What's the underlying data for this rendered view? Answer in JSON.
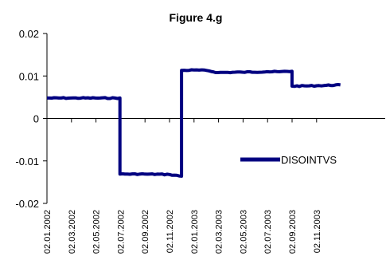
{
  "chart_data": {
    "type": "line",
    "title": "Figure 4.g",
    "xlabel": "",
    "ylabel": "",
    "ylim": [
      -0.02,
      0.02
    ],
    "y_ticks": [
      "0.02",
      "0.01",
      "0",
      "-0.01",
      "-0.02"
    ],
    "y_tick_values": [
      0.02,
      0.01,
      0,
      -0.01,
      -0.02
    ],
    "x_tick_labels": [
      "02.01.2002",
      "02.03.2002",
      "02.05.2002",
      "02.07.2002",
      "02.09.2002",
      "02.11.2002",
      "02.01.2003",
      "02.03.2003",
      "02.05.2003",
      "02.07.2003",
      "02.09.2003",
      "02.11.2003"
    ],
    "grid": false,
    "legend_position": "right",
    "series": [
      {
        "name": "DISOINTVS",
        "color": "#000080",
        "x": [
          "02.01.2002",
          "02.03.2002",
          "02.05.2002",
          "02.07.2002",
          "02.07.2002",
          "02.09.2002",
          "02.11.2002",
          "02.12.2002",
          "02.12.2002",
          "02.01.2003",
          "02.02.2003",
          "02.03.2003",
          "02.05.2003",
          "02.07.2003",
          "02.08.2003",
          "02.09.2003",
          "02.09.2003",
          "02.11.2003",
          "31.12.2003"
        ],
        "values": [
          0.0048,
          0.0048,
          0.0048,
          0.0048,
          -0.0131,
          -0.0131,
          -0.0132,
          -0.0136,
          0.0113,
          0.0114,
          0.0113,
          0.0108,
          0.0109,
          0.011,
          0.011,
          0.0111,
          0.0076,
          0.0077,
          0.0079
        ]
      }
    ]
  }
}
